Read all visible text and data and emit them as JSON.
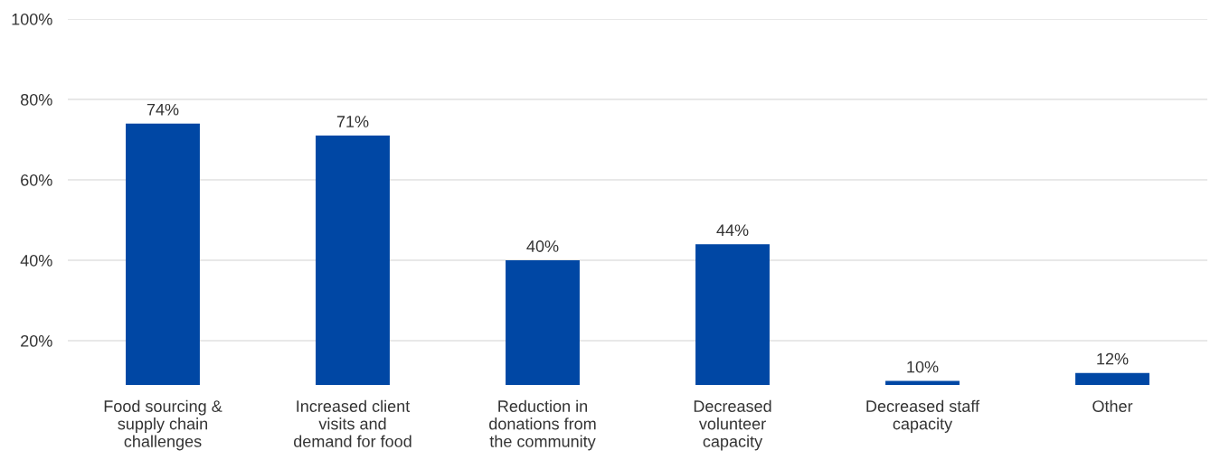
{
  "chart_data": {
    "type": "bar",
    "categories": [
      "Food sourcing &\nsupply chain\nchallenges",
      "Increased client\nvisits and\ndemand for food",
      "Reduction in\ndonations from\nthe community",
      "Decreased\nvolunteer\ncapacity",
      "Decreased staff\ncapacity",
      "Other"
    ],
    "values": [
      74,
      71,
      40,
      44,
      10,
      12
    ],
    "value_labels": [
      "74%",
      "71%",
      "40%",
      "44%",
      "10%",
      "12%"
    ],
    "color": "#0047a4",
    "ylim": [
      9,
      100
    ],
    "yticks": [
      {
        "value": 20,
        "label": "20%"
      },
      {
        "value": 40,
        "label": "40%"
      },
      {
        "value": 60,
        "label": "60%"
      },
      {
        "value": 80,
        "label": "80%"
      },
      {
        "value": 100,
        "label": "100%"
      }
    ],
    "grid": "y"
  }
}
